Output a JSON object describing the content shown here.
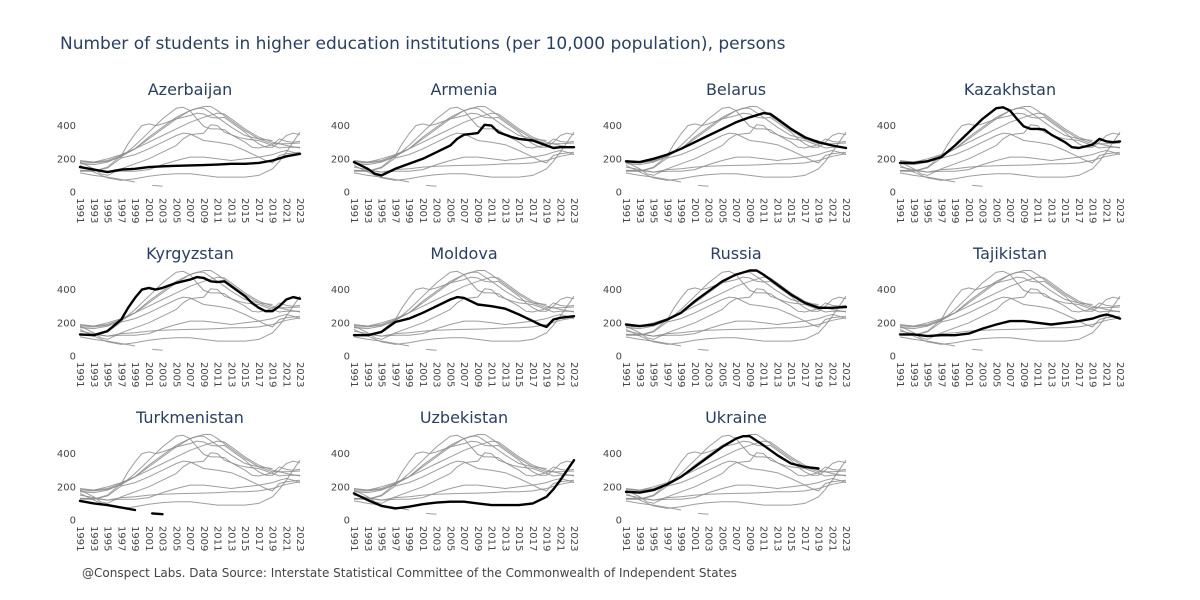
{
  "title": "Number of students in higher education institutions (per 10,000 population), persons",
  "source": "@Conspect Labs. Data Source: Interstate Statistical Committee of the Commonwealth of Independent States",
  "colors": {
    "highlight": "#000000",
    "background_series": "#8c8c8c",
    "title": "#2a3f5f"
  },
  "chart_data": {
    "type": "line",
    "layout": "small-multiples",
    "grid": false,
    "xlabel": "",
    "ylabel": "",
    "xlim": [
      1991,
      2023
    ],
    "ylim": [
      0,
      530
    ],
    "x_ticks": [
      1991,
      1993,
      1995,
      1997,
      1999,
      2001,
      2003,
      2005,
      2007,
      2009,
      2011,
      2013,
      2015,
      2017,
      2019,
      2021,
      2023
    ],
    "y_ticks": [
      0,
      200,
      400
    ],
    "series": [
      {
        "name": "Azerbaijan",
        "points": [
          [
            1991,
            150
          ],
          [
            1993,
            135
          ],
          [
            1995,
            120
          ],
          [
            1997,
            135
          ],
          [
            1999,
            140
          ],
          [
            2001,
            150
          ],
          [
            2003,
            155
          ],
          [
            2005,
            158
          ],
          [
            2007,
            160
          ],
          [
            2009,
            162
          ],
          [
            2011,
            165
          ],
          [
            2013,
            170
          ],
          [
            2015,
            170
          ],
          [
            2017,
            175
          ],
          [
            2019,
            190
          ],
          [
            2021,
            215
          ],
          [
            2023,
            230
          ]
        ]
      },
      {
        "name": "Armenia",
        "points": [
          [
            1991,
            180
          ],
          [
            1993,
            140
          ],
          [
            1994,
            110
          ],
          [
            1995,
            100
          ],
          [
            1997,
            140
          ],
          [
            1999,
            170
          ],
          [
            2001,
            200
          ],
          [
            2003,
            240
          ],
          [
            2005,
            280
          ],
          [
            2006,
            320
          ],
          [
            2007,
            345
          ],
          [
            2008,
            350
          ],
          [
            2009,
            355
          ],
          [
            2010,
            405
          ],
          [
            2011,
            400
          ],
          [
            2012,
            360
          ],
          [
            2013,
            345
          ],
          [
            2014,
            330
          ],
          [
            2015,
            320
          ],
          [
            2017,
            310
          ],
          [
            2019,
            280
          ],
          [
            2020,
            265
          ],
          [
            2021,
            270
          ],
          [
            2023,
            270
          ]
        ]
      },
      {
        "name": "Belarus",
        "points": [
          [
            1991,
            185
          ],
          [
            1993,
            180
          ],
          [
            1995,
            200
          ],
          [
            1997,
            225
          ],
          [
            1999,
            260
          ],
          [
            2001,
            300
          ],
          [
            2003,
            340
          ],
          [
            2005,
            380
          ],
          [
            2007,
            420
          ],
          [
            2009,
            450
          ],
          [
            2011,
            475
          ],
          [
            2012,
            470
          ],
          [
            2013,
            440
          ],
          [
            2015,
            380
          ],
          [
            2017,
            330
          ],
          [
            2019,
            300
          ],
          [
            2021,
            280
          ],
          [
            2023,
            265
          ]
        ]
      },
      {
        "name": "Kazakhstan",
        "points": [
          [
            1991,
            175
          ],
          [
            1993,
            175
          ],
          [
            1995,
            185
          ],
          [
            1997,
            210
          ],
          [
            1999,
            280
          ],
          [
            2001,
            360
          ],
          [
            2003,
            440
          ],
          [
            2005,
            505
          ],
          [
            2006,
            510
          ],
          [
            2007,
            490
          ],
          [
            2008,
            440
          ],
          [
            2009,
            395
          ],
          [
            2010,
            380
          ],
          [
            2011,
            380
          ],
          [
            2012,
            375
          ],
          [
            2013,
            345
          ],
          [
            2015,
            300
          ],
          [
            2016,
            270
          ],
          [
            2017,
            265
          ],
          [
            2019,
            285
          ],
          [
            2020,
            320
          ],
          [
            2021,
            305
          ],
          [
            2022,
            300
          ],
          [
            2023,
            305
          ]
        ]
      },
      {
        "name": "Kyrgyzstan",
        "points": [
          [
            1991,
            130
          ],
          [
            1993,
            125
          ],
          [
            1995,
            150
          ],
          [
            1997,
            220
          ],
          [
            1998,
            290
          ],
          [
            1999,
            350
          ],
          [
            2000,
            400
          ],
          [
            2001,
            410
          ],
          [
            2002,
            400
          ],
          [
            2003,
            410
          ],
          [
            2005,
            440
          ],
          [
            2007,
            460
          ],
          [
            2008,
            475
          ],
          [
            2009,
            470
          ],
          [
            2010,
            450
          ],
          [
            2011,
            445
          ],
          [
            2012,
            450
          ],
          [
            2013,
            420
          ],
          [
            2015,
            360
          ],
          [
            2016,
            320
          ],
          [
            2017,
            290
          ],
          [
            2018,
            270
          ],
          [
            2019,
            270
          ],
          [
            2020,
            300
          ],
          [
            2021,
            340
          ],
          [
            2022,
            355
          ],
          [
            2023,
            345
          ]
        ]
      },
      {
        "name": "Moldova",
        "points": [
          [
            1991,
            125
          ],
          [
            1993,
            125
          ],
          [
            1995,
            145
          ],
          [
            1997,
            205
          ],
          [
            1999,
            225
          ],
          [
            2001,
            260
          ],
          [
            2003,
            300
          ],
          [
            2005,
            340
          ],
          [
            2006,
            355
          ],
          [
            2007,
            350
          ],
          [
            2009,
            310
          ],
          [
            2011,
            300
          ],
          [
            2013,
            285
          ],
          [
            2015,
            250
          ],
          [
            2017,
            210
          ],
          [
            2018,
            190
          ],
          [
            2019,
            175
          ],
          [
            2020,
            220
          ],
          [
            2021,
            230
          ],
          [
            2023,
            240
          ]
        ]
      },
      {
        "name": "Russia",
        "points": [
          [
            1991,
            190
          ],
          [
            1993,
            180
          ],
          [
            1995,
            190
          ],
          [
            1997,
            220
          ],
          [
            1999,
            260
          ],
          [
            2001,
            330
          ],
          [
            2003,
            390
          ],
          [
            2005,
            450
          ],
          [
            2007,
            490
          ],
          [
            2009,
            515
          ],
          [
            2010,
            515
          ],
          [
            2011,
            490
          ],
          [
            2013,
            430
          ],
          [
            2015,
            370
          ],
          [
            2017,
            320
          ],
          [
            2019,
            290
          ],
          [
            2021,
            290
          ],
          [
            2023,
            295
          ]
        ]
      },
      {
        "name": "Tajikistan",
        "points": [
          [
            1991,
            130
          ],
          [
            1993,
            130
          ],
          [
            1995,
            120
          ],
          [
            1997,
            125
          ],
          [
            1999,
            125
          ],
          [
            2001,
            135
          ],
          [
            2003,
            165
          ],
          [
            2005,
            190
          ],
          [
            2007,
            210
          ],
          [
            2009,
            210
          ],
          [
            2011,
            200
          ],
          [
            2013,
            190
          ],
          [
            2015,
            200
          ],
          [
            2017,
            210
          ],
          [
            2019,
            225
          ],
          [
            2020,
            240
          ],
          [
            2021,
            250
          ],
          [
            2022,
            240
          ],
          [
            2023,
            225
          ]
        ]
      },
      {
        "name": "Turkmenistan",
        "points": [
          [
            1991,
            115
          ],
          [
            1993,
            100
          ],
          [
            1995,
            90
          ],
          [
            1997,
            75
          ],
          [
            1999,
            60
          ],
          [
            2001,
            null
          ],
          [
            2001.5,
            40
          ],
          [
            2003,
            35
          ]
        ]
      },
      {
        "name": "Uzbekistan",
        "points": [
          [
            1991,
            160
          ],
          [
            1993,
            120
          ],
          [
            1995,
            85
          ],
          [
            1997,
            70
          ],
          [
            1999,
            80
          ],
          [
            2001,
            95
          ],
          [
            2003,
            105
          ],
          [
            2005,
            110
          ],
          [
            2007,
            110
          ],
          [
            2009,
            100
          ],
          [
            2011,
            90
          ],
          [
            2013,
            90
          ],
          [
            2015,
            90
          ],
          [
            2017,
            100
          ],
          [
            2019,
            140
          ],
          [
            2020,
            185
          ],
          [
            2021,
            240
          ],
          [
            2022,
            300
          ],
          [
            2023,
            360
          ]
        ]
      },
      {
        "name": "Ukraine",
        "points": [
          [
            1991,
            170
          ],
          [
            1993,
            165
          ],
          [
            1995,
            180
          ],
          [
            1997,
            215
          ],
          [
            1999,
            260
          ],
          [
            2001,
            320
          ],
          [
            2003,
            380
          ],
          [
            2005,
            440
          ],
          [
            2007,
            490
          ],
          [
            2008,
            505
          ],
          [
            2009,
            505
          ],
          [
            2011,
            450
          ],
          [
            2013,
            390
          ],
          [
            2015,
            340
          ],
          [
            2017,
            320
          ],
          [
            2019,
            310
          ]
        ]
      }
    ]
  }
}
